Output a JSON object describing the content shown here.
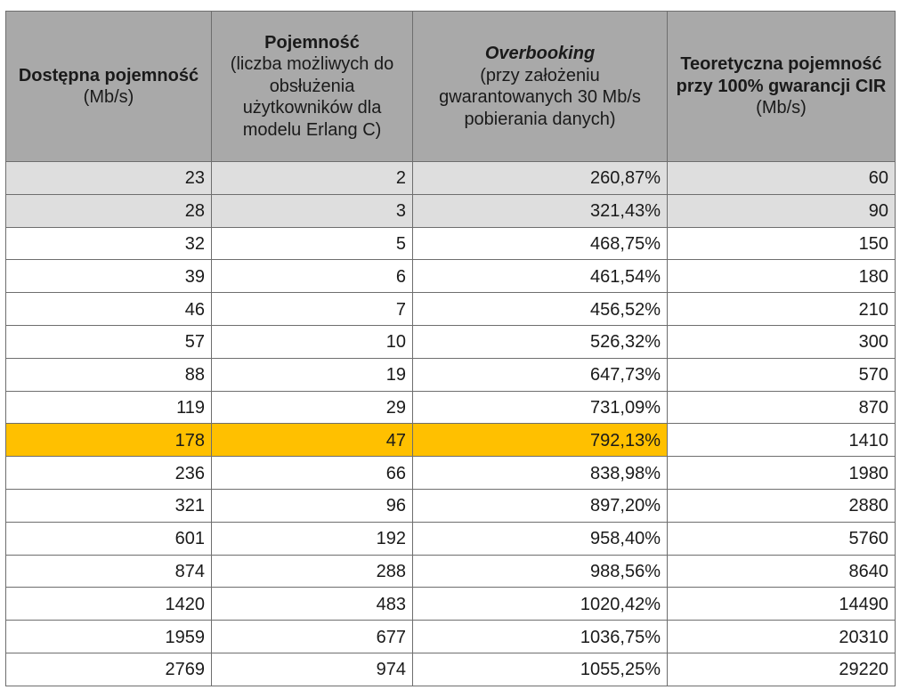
{
  "headers": [
    {
      "bold": "Dostępna pojemność",
      "normal": "(Mb/s)"
    },
    {
      "bold": "Pojemność",
      "normal": "(liczba możliwych do obsłużenia użytkowników dla modelu Erlang C)"
    },
    {
      "bold_italic": "Overbooking",
      "normal": "(przy założeniu gwarantowanych 30 Mb/s pobierania danych)"
    },
    {
      "bold": "Teoretyczna pojemność przy 100% gwarancji CIR",
      "normal": "(Mb/s)"
    }
  ],
  "rows": [
    [
      "23",
      "2",
      "260,87%",
      "60"
    ],
    [
      "28",
      "3",
      "321,43%",
      "90"
    ],
    [
      "32",
      "5",
      "468,75%",
      "150"
    ],
    [
      "39",
      "6",
      "461,54%",
      "180"
    ],
    [
      "46",
      "7",
      "456,52%",
      "210"
    ],
    [
      "57",
      "10",
      "526,32%",
      "300"
    ],
    [
      "88",
      "19",
      "647,73%",
      "570"
    ],
    [
      "119",
      "29",
      "731,09%",
      "870"
    ],
    [
      "178",
      "47",
      "792,13%",
      "1410"
    ],
    [
      "236",
      "66",
      "838,98%",
      "1980"
    ],
    [
      "321",
      "96",
      "897,20%",
      "2880"
    ],
    [
      "601",
      "192",
      "958,40%",
      "5760"
    ],
    [
      "874",
      "288",
      "988,56%",
      "8640"
    ],
    [
      "1420",
      "483",
      "1020,42%",
      "14490"
    ],
    [
      "1959",
      "677",
      "1036,75%",
      "20310"
    ],
    [
      "2769",
      "974",
      "1055,25%",
      "29220"
    ]
  ],
  "row_styles": [
    "gray",
    "gray",
    "",
    "",
    "",
    "",
    "",
    "",
    "hl",
    "",
    "",
    "",
    "",
    "",
    "",
    ""
  ],
  "colors": {
    "header_bg": "#a9a9a9",
    "gray_row_bg": "#dedede",
    "highlight_row_bg": "#ffc000",
    "border": "#6e6e6e"
  }
}
